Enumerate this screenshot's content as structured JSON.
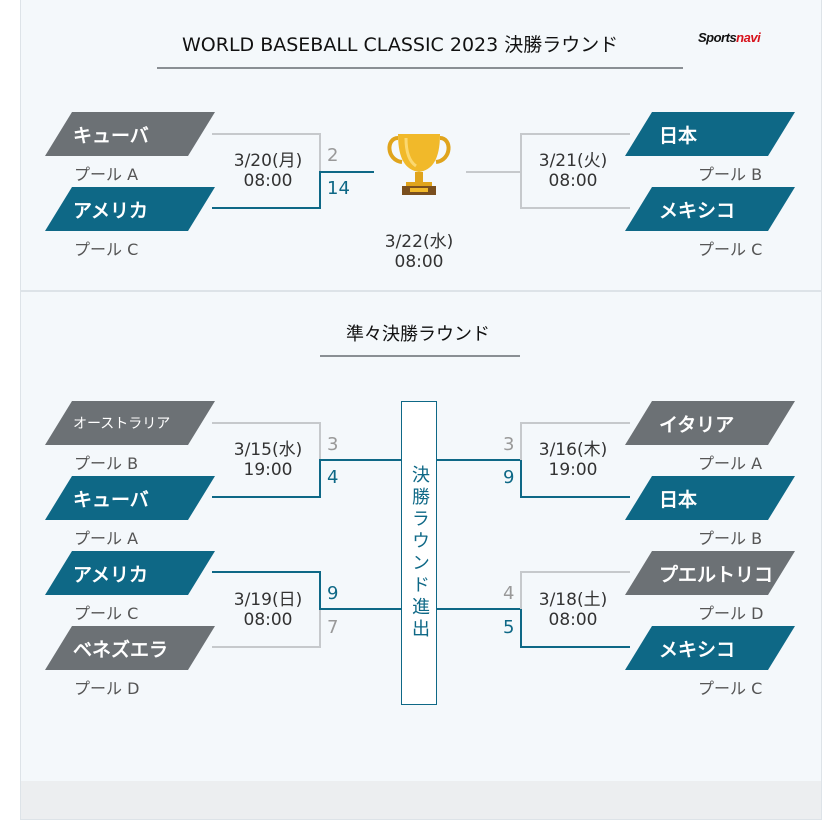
{
  "final_round": {
    "title": "WORLD BASEBALL CLASSIC 2023 決勝ラウンド",
    "logo": {
      "left": "Sports",
      "right": "navi"
    },
    "trophy_icon": "trophy-icon",
    "semi1": {
      "team1": {
        "name": "キューバ",
        "pool": "プール A",
        "score": "2",
        "color": "#6c7175"
      },
      "team2": {
        "name": "アメリカ",
        "pool": "プール C",
        "score": "14",
        "color": "#0e6886"
      },
      "date": "3/20(月)",
      "time": "08:00"
    },
    "semi2": {
      "team1": {
        "name": "日本",
        "pool": "プール B",
        "color": "#0e6886"
      },
      "team2": {
        "name": "メキシコ",
        "pool": "プール C",
        "color": "#0e6886"
      },
      "date": "3/21(火)",
      "time": "08:00"
    },
    "final": {
      "date": "3/22(水)",
      "time": "08:00"
    }
  },
  "quarter_round": {
    "title": "準々決勝ラウンド",
    "advance_label": "決勝ラウンド進出",
    "qf1": {
      "team1": {
        "name": "オーストラリア",
        "pool": "プール B",
        "score": "3"
      },
      "team2": {
        "name": "キューバ",
        "pool": "プール A",
        "score": "4"
      },
      "date": "3/15(水)",
      "time": "19:00"
    },
    "qf2": {
      "team1": {
        "name": "アメリカ",
        "pool": "プール C",
        "score": "9"
      },
      "team2": {
        "name": "ベネズエラ",
        "pool": "プール D",
        "score": "7"
      },
      "date": "3/19(日)",
      "time": "08:00"
    },
    "qf3": {
      "team1": {
        "name": "イタリア",
        "pool": "プール A",
        "score": "3"
      },
      "team2": {
        "name": "日本",
        "pool": "プール B",
        "score": "9"
      },
      "date": "3/16(木)",
      "time": "19:00"
    },
    "qf4": {
      "team1": {
        "name": "プエルトリコ",
        "pool": "プール D",
        "score": "4"
      },
      "team2": {
        "name": "メキシコ",
        "pool": "プール C",
        "score": "5"
      },
      "date": "3/18(土)",
      "time": "08:00"
    }
  },
  "colors": {
    "accent": "#0e6886",
    "loser": "#6c7175",
    "line_gray": "#c6c9cc",
    "logo_red": "#d7131c"
  }
}
